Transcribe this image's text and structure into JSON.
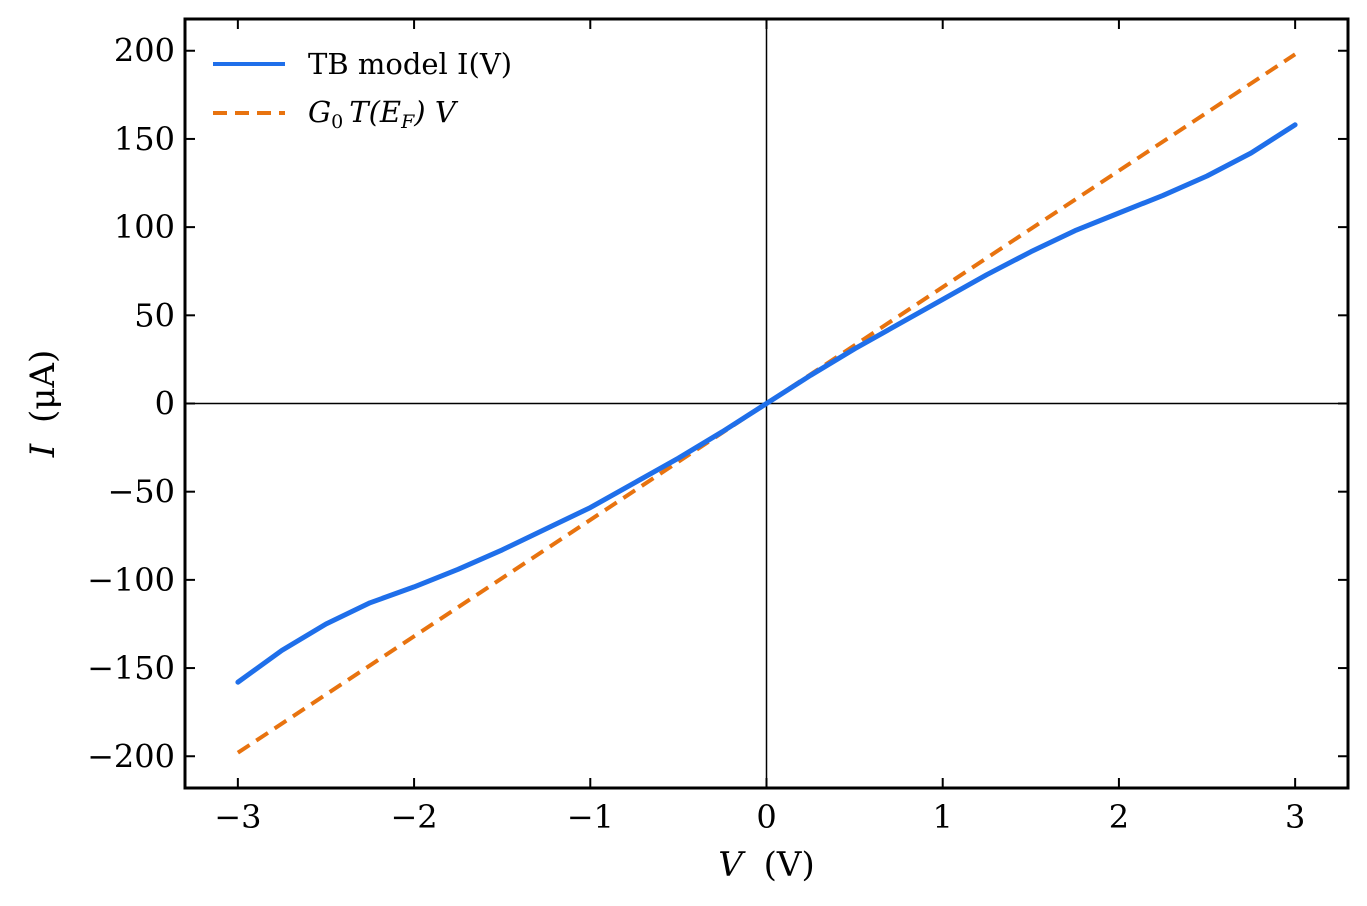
{
  "chart_data": {
    "type": "line",
    "xlabel": {
      "var": "V",
      "unit": "(V)"
    },
    "ylabel": {
      "var": "I",
      "unit": "(μA)"
    },
    "xlim": [
      -3.3,
      3.3
    ],
    "ylim": [
      -218,
      218
    ],
    "xticks": [
      -3,
      -2,
      -1,
      0,
      1,
      2,
      3
    ],
    "xtick_labels": [
      "−3",
      "−2",
      "−1",
      "0",
      "1",
      "2",
      "3"
    ],
    "yticks": [
      -200,
      -150,
      -100,
      -50,
      0,
      50,
      100,
      150,
      200
    ],
    "ytick_labels": [
      "−200",
      "−150",
      "−100",
      "−50",
      "0",
      "50",
      "100",
      "150",
      "200"
    ],
    "legend_position": "top-left",
    "reference_lines": {
      "x": 0,
      "y": 0
    },
    "series": [
      {
        "name": "TB model I(V)",
        "style": "solid",
        "color": "#1f6fea",
        "x": [
          -3.0,
          -2.75,
          -2.5,
          -2.25,
          -2.0,
          -1.75,
          -1.5,
          -1.25,
          -1.0,
          -0.75,
          -0.5,
          -0.25,
          0.0,
          0.25,
          0.5,
          0.75,
          1.0,
          1.25,
          1.5,
          1.75,
          2.0,
          2.25,
          2.5,
          2.75,
          3.0
        ],
        "y": [
          -158,
          -140,
          -125,
          -113,
          -104,
          -94,
          -83,
          -71,
          -59,
          -45,
          -31,
          -16,
          0,
          16,
          31,
          45,
          59,
          73,
          86,
          98,
          108,
          118,
          129,
          142,
          158
        ]
      },
      {
        "name": "G0 T(EF) V",
        "style": "dashed",
        "color": "#e8730f",
        "x": [
          -3.0,
          3.0
        ],
        "y": [
          -198,
          198
        ]
      }
    ]
  }
}
